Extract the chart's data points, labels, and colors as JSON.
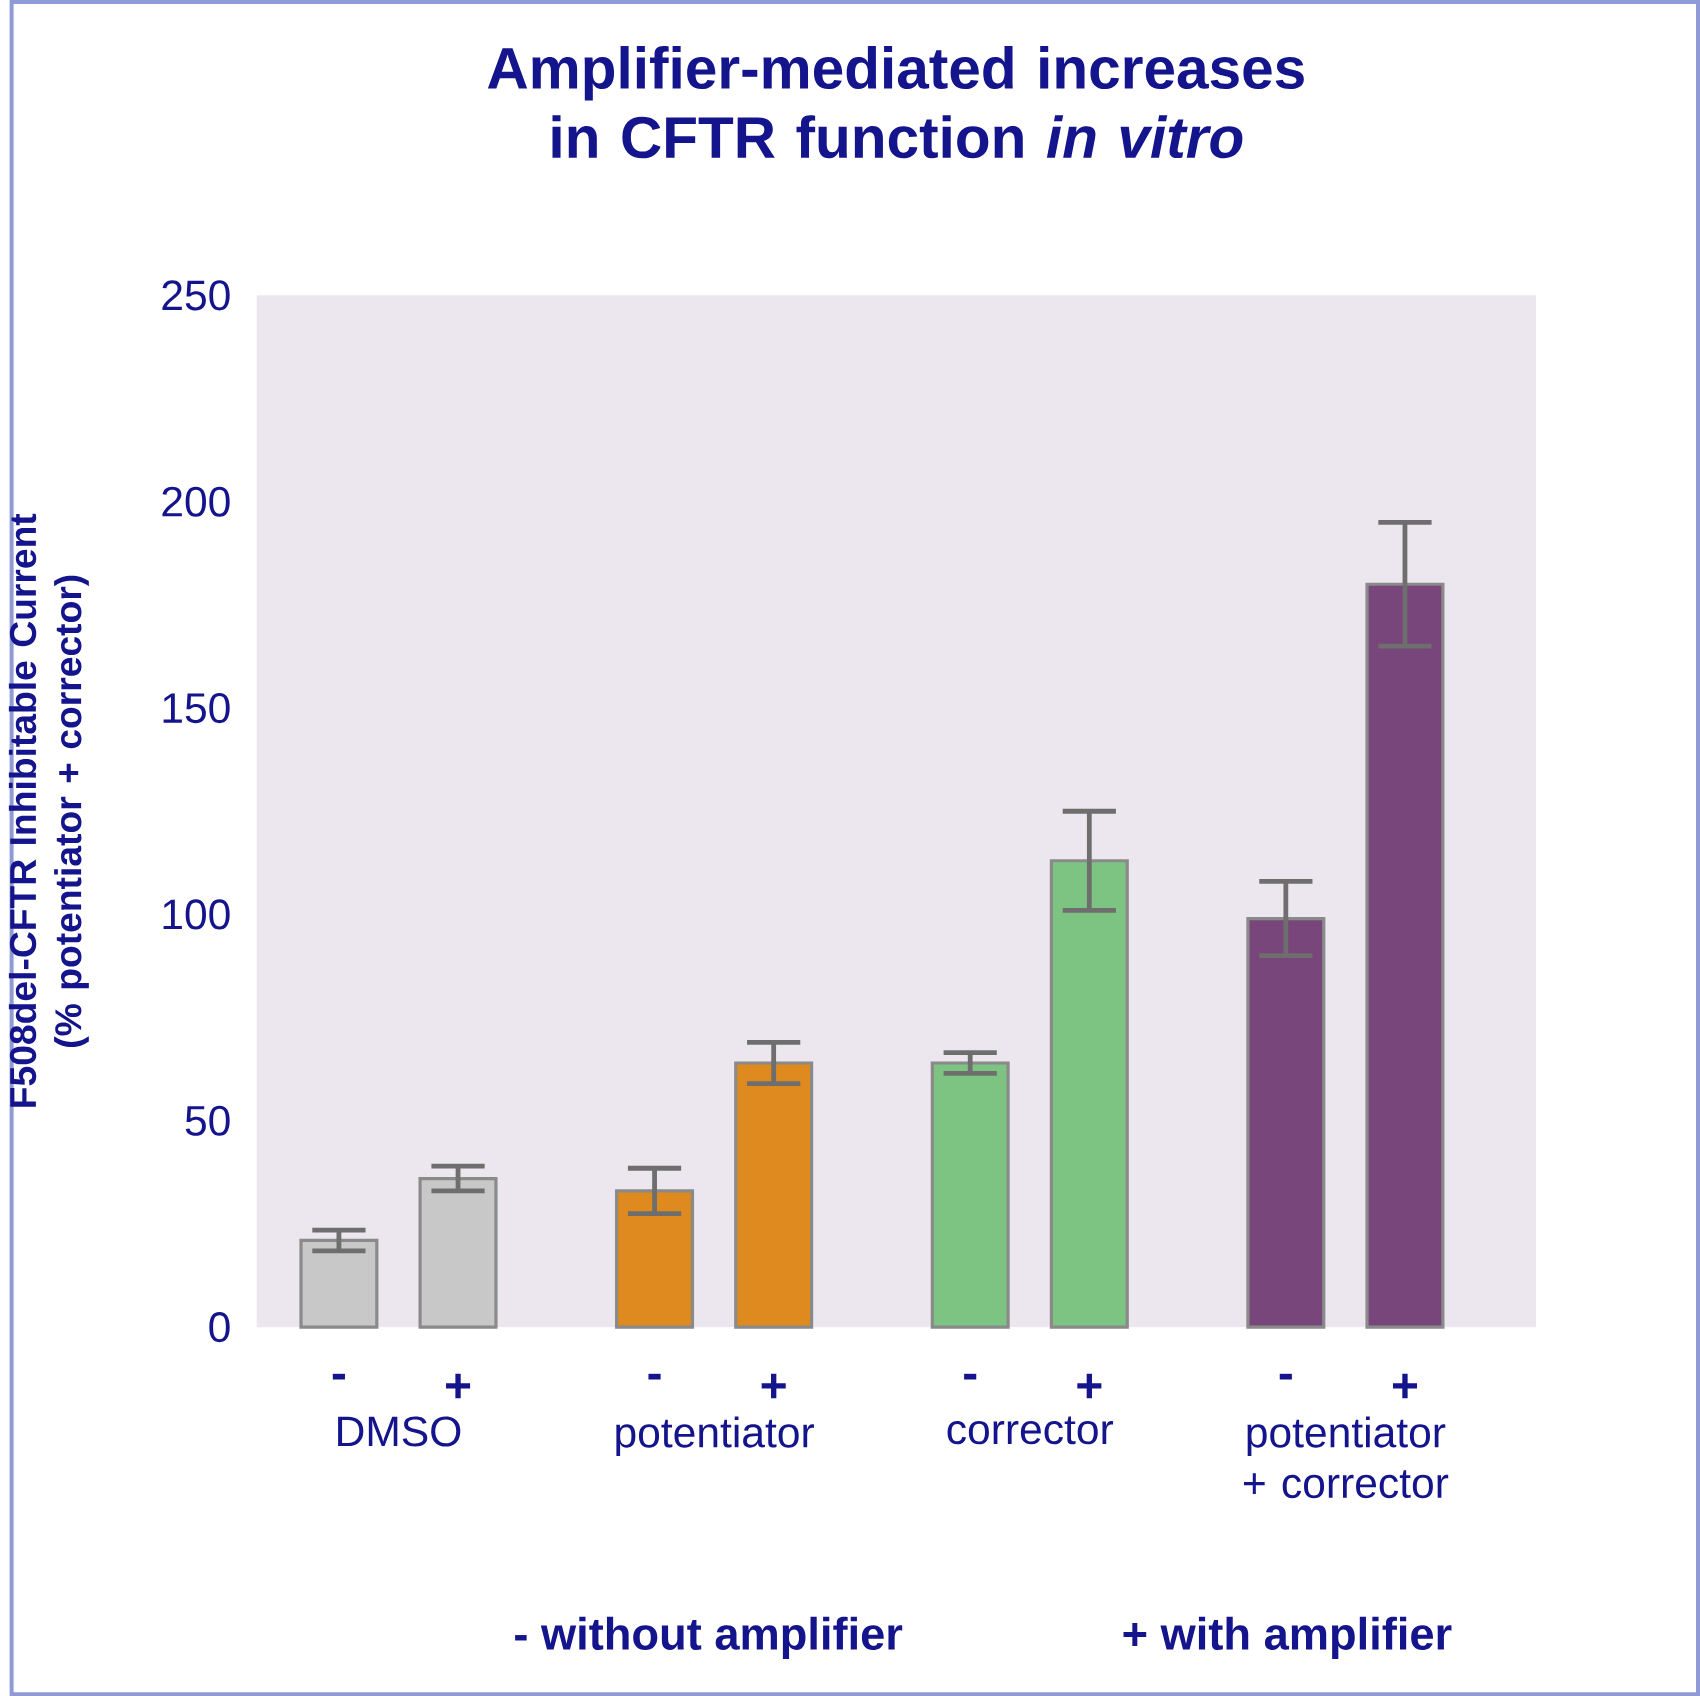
{
  "chart_data": {
    "type": "bar",
    "title": "Amplifier-mediated increases in CFTR function *in vitro*",
    "ylabel": "F508del-CFTR Inhibitable Current (% potentiator + corrector)",
    "categories": [
      "DMSO",
      "potentiator",
      "corrector",
      "potentiator + corrector"
    ],
    "series": [
      {
        "name": "-",
        "values": [
          21,
          33,
          64,
          99
        ],
        "errors": [
          2.5,
          5.5,
          2.5,
          9
        ],
        "colors": [
          "#c8c8c8",
          "#de8a1e",
          "#7dc382",
          "#78467a"
        ]
      },
      {
        "name": "+",
        "values": [
          36,
          64,
          113,
          180
        ],
        "errors": [
          3,
          5,
          12,
          15
        ],
        "colors": [
          "#c8c8c8",
          "#de8a1e",
          "#7dc382",
          "#78467a"
        ]
      }
    ],
    "ylim": [
      0,
      250
    ],
    "yticks": [
      0,
      50,
      100,
      150,
      200,
      250
    ],
    "grid": false,
    "legend": false,
    "annotations": [
      "- without amplifier",
      "+ with amplifier"
    ]
  }
}
